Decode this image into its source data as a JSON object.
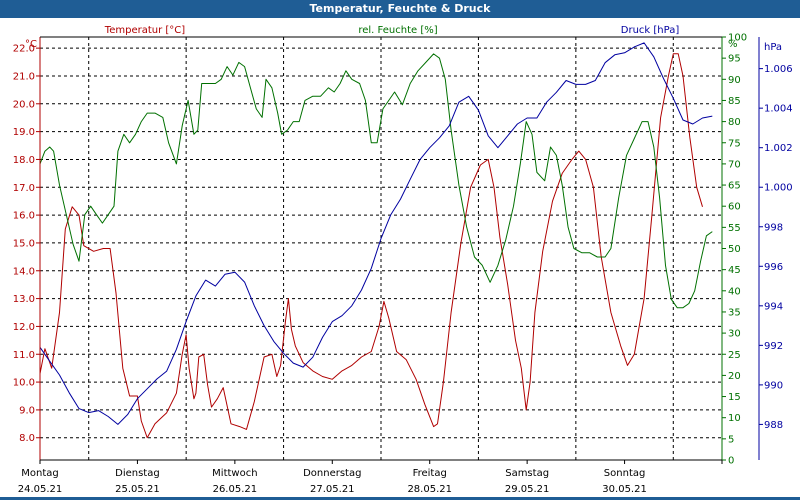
{
  "window": {
    "title": "Temperatur, Feuchte & Druck"
  },
  "colors": {
    "temp": "#b00000",
    "hum": "#007000",
    "press": "#0000a0",
    "titlebar": "#1f5d95"
  },
  "chart_data": {
    "type": "line",
    "title": "Temperatur, Feuchte & Druck",
    "x_labels": [
      {
        "day": "Montag",
        "date": "24.05.21"
      },
      {
        "day": "Dienstag",
        "date": "25.05.21"
      },
      {
        "day": "Mittwoch",
        "date": "26.05.21"
      },
      {
        "day": "Donnerstag",
        "date": "27.05.21"
      },
      {
        "day": "Freitag",
        "date": "28.05.21"
      },
      {
        "day": "Samstag",
        "date": "29.05.21"
      },
      {
        "day": "Sonntag",
        "date": "30.05.21"
      }
    ],
    "x_range_days": [
      0,
      7
    ],
    "axes": {
      "temp": {
        "label": "Temperatur [°C]",
        "unit": "°C",
        "min": 7.2,
        "max": 22.4,
        "ticks": [
          8.0,
          9.0,
          10.0,
          11.0,
          12.0,
          13.0,
          14.0,
          15.0,
          16.0,
          17.0,
          18.0,
          19.0,
          20.0,
          21.0,
          22.0
        ]
      },
      "hum": {
        "label": "rel. Feuchte [%]",
        "unit": "%",
        "min": 0,
        "max": 100,
        "ticks": [
          0,
          5,
          10,
          15,
          20,
          25,
          30,
          35,
          40,
          45,
          50,
          55,
          60,
          65,
          70,
          75,
          80,
          85,
          90,
          95,
          100
        ]
      },
      "press": {
        "label": "Druck [hPa]",
        "unit": "hPa",
        "min": 986.2,
        "max": 1007.6,
        "ticks": [
          988,
          990,
          992,
          994,
          996,
          998,
          1000,
          1002,
          1004,
          1006
        ]
      }
    },
    "series": [
      {
        "name": "Temperatur",
        "axis": "temp",
        "points": [
          [
            0.0,
            10.3
          ],
          [
            0.05,
            11.2
          ],
          [
            0.12,
            10.5
          ],
          [
            0.2,
            12.5
          ],
          [
            0.26,
            15.5
          ],
          [
            0.33,
            16.3
          ],
          [
            0.4,
            16.0
          ],
          [
            0.45,
            14.9
          ],
          [
            0.55,
            14.7
          ],
          [
            0.65,
            14.8
          ],
          [
            0.72,
            14.8
          ],
          [
            0.78,
            13.2
          ],
          [
            0.85,
            10.5
          ],
          [
            0.92,
            9.5
          ],
          [
            1.0,
            9.5
          ],
          [
            1.04,
            8.6
          ],
          [
            1.1,
            8.0
          ],
          [
            1.18,
            8.5
          ],
          [
            1.3,
            8.9
          ],
          [
            1.4,
            9.6
          ],
          [
            1.46,
            11.0
          ],
          [
            1.5,
            11.7
          ],
          [
            1.53,
            10.5
          ],
          [
            1.58,
            9.4
          ],
          [
            1.6,
            9.6
          ],
          [
            1.63,
            10.9
          ],
          [
            1.68,
            11.0
          ],
          [
            1.72,
            9.9
          ],
          [
            1.76,
            9.1
          ],
          [
            1.82,
            9.4
          ],
          [
            1.88,
            9.8
          ],
          [
            1.96,
            8.5
          ],
          [
            2.05,
            8.4
          ],
          [
            2.12,
            8.3
          ],
          [
            2.2,
            9.3
          ],
          [
            2.3,
            10.9
          ],
          [
            2.38,
            11.0
          ],
          [
            2.43,
            10.2
          ],
          [
            2.47,
            10.6
          ],
          [
            2.52,
            12.2
          ],
          [
            2.55,
            13.0
          ],
          [
            2.58,
            11.9
          ],
          [
            2.62,
            11.3
          ],
          [
            2.7,
            10.7
          ],
          [
            2.8,
            10.4
          ],
          [
            2.9,
            10.2
          ],
          [
            3.0,
            10.1
          ],
          [
            3.1,
            10.4
          ],
          [
            3.2,
            10.6
          ],
          [
            3.3,
            10.9
          ],
          [
            3.4,
            11.1
          ],
          [
            3.48,
            12.0
          ],
          [
            3.53,
            12.9
          ],
          [
            3.58,
            12.3
          ],
          [
            3.66,
            11.1
          ],
          [
            3.76,
            10.8
          ],
          [
            3.86,
            10.1
          ],
          [
            3.95,
            9.2
          ],
          [
            4.04,
            8.4
          ],
          [
            4.08,
            8.5
          ],
          [
            4.14,
            10.0
          ],
          [
            4.22,
            12.5
          ],
          [
            4.32,
            15.0
          ],
          [
            4.42,
            17.0
          ],
          [
            4.52,
            17.8
          ],
          [
            4.6,
            18.0
          ],
          [
            4.66,
            17.0
          ],
          [
            4.72,
            15.2
          ],
          [
            4.8,
            13.5
          ],
          [
            4.88,
            11.5
          ],
          [
            4.94,
            10.5
          ],
          [
            4.99,
            9.0
          ],
          [
            5.03,
            10.0
          ],
          [
            5.08,
            12.5
          ],
          [
            5.16,
            14.7
          ],
          [
            5.26,
            16.5
          ],
          [
            5.36,
            17.5
          ],
          [
            5.46,
            18.0
          ],
          [
            5.53,
            18.3
          ],
          [
            5.6,
            18.0
          ],
          [
            5.68,
            17.0
          ],
          [
            5.76,
            14.5
          ],
          [
            5.86,
            12.5
          ],
          [
            5.96,
            11.3
          ],
          [
            6.03,
            10.6
          ],
          [
            6.1,
            11.0
          ],
          [
            6.2,
            13.0
          ],
          [
            6.28,
            16.0
          ],
          [
            6.37,
            19.5
          ],
          [
            6.45,
            21.0
          ],
          [
            6.5,
            21.8
          ],
          [
            6.55,
            21.8
          ],
          [
            6.6,
            21.0
          ],
          [
            6.67,
            18.8
          ],
          [
            6.74,
            17.0
          ],
          [
            6.8,
            16.3
          ]
        ]
      },
      {
        "name": "rel. Feuchte",
        "axis": "hum",
        "points": [
          [
            0.0,
            70.0
          ],
          [
            0.05,
            73.0
          ],
          [
            0.1,
            74.0
          ],
          [
            0.14,
            73.0
          ],
          [
            0.2,
            65.0
          ],
          [
            0.27,
            58.0
          ],
          [
            0.34,
            51.0
          ],
          [
            0.4,
            47.0
          ],
          [
            0.46,
            58.0
          ],
          [
            0.52,
            60.0
          ],
          [
            0.58,
            58.0
          ],
          [
            0.64,
            56.0
          ],
          [
            0.7,
            58.0
          ],
          [
            0.76,
            60.0
          ],
          [
            0.8,
            73.0
          ],
          [
            0.86,
            77.0
          ],
          [
            0.92,
            75.0
          ],
          [
            0.98,
            77.0
          ],
          [
            1.04,
            80.0
          ],
          [
            1.1,
            82.0
          ],
          [
            1.18,
            82.0
          ],
          [
            1.26,
            81.0
          ],
          [
            1.32,
            75.0
          ],
          [
            1.4,
            70.0
          ],
          [
            1.46,
            79.0
          ],
          [
            1.52,
            85.0
          ],
          [
            1.58,
            77.0
          ],
          [
            1.62,
            78.0
          ],
          [
            1.66,
            89.0
          ],
          [
            1.72,
            89.0
          ],
          [
            1.8,
            89.0
          ],
          [
            1.86,
            90.0
          ],
          [
            1.92,
            93.0
          ],
          [
            1.98,
            91.0
          ],
          [
            2.04,
            94.0
          ],
          [
            2.1,
            93.0
          ],
          [
            2.16,
            88.0
          ],
          [
            2.22,
            83.0
          ],
          [
            2.28,
            81.0
          ],
          [
            2.32,
            90.0
          ],
          [
            2.38,
            88.0
          ],
          [
            2.44,
            82.0
          ],
          [
            2.48,
            77.0
          ],
          [
            2.54,
            78.0
          ],
          [
            2.6,
            80.0
          ],
          [
            2.66,
            80.0
          ],
          [
            2.72,
            85.0
          ],
          [
            2.8,
            86.0
          ],
          [
            2.88,
            86.0
          ],
          [
            2.96,
            88.0
          ],
          [
            3.02,
            87.0
          ],
          [
            3.08,
            89.0
          ],
          [
            3.14,
            92.0
          ],
          [
            3.2,
            90.0
          ],
          [
            3.28,
            89.0
          ],
          [
            3.34,
            85.0
          ],
          [
            3.4,
            75.0
          ],
          [
            3.46,
            75.0
          ],
          [
            3.52,
            83.0
          ],
          [
            3.58,
            85.0
          ],
          [
            3.64,
            87.0
          ],
          [
            3.72,
            84.0
          ],
          [
            3.8,
            89.0
          ],
          [
            3.88,
            92.0
          ],
          [
            3.96,
            94.0
          ],
          [
            4.04,
            96.0
          ],
          [
            4.1,
            95.0
          ],
          [
            4.16,
            90.0
          ],
          [
            4.22,
            78.0
          ],
          [
            4.3,
            65.0
          ],
          [
            4.38,
            55.0
          ],
          [
            4.46,
            48.0
          ],
          [
            4.54,
            46.0
          ],
          [
            4.62,
            42.0
          ],
          [
            4.7,
            46.0
          ],
          [
            4.78,
            52.0
          ],
          [
            4.86,
            60.0
          ],
          [
            4.93,
            70.0
          ],
          [
            4.99,
            80.0
          ],
          [
            5.05,
            77.0
          ],
          [
            5.1,
            68.0
          ],
          [
            5.18,
            66.0
          ],
          [
            5.24,
            74.0
          ],
          [
            5.3,
            72.0
          ],
          [
            5.36,
            65.0
          ],
          [
            5.42,
            55.0
          ],
          [
            5.48,
            50.0
          ],
          [
            5.56,
            49.0
          ],
          [
            5.64,
            49.0
          ],
          [
            5.72,
            48.0
          ],
          [
            5.8,
            48.0
          ],
          [
            5.86,
            50.0
          ],
          [
            5.94,
            62.0
          ],
          [
            6.02,
            72.0
          ],
          [
            6.1,
            76.0
          ],
          [
            6.18,
            80.0
          ],
          [
            6.24,
            80.0
          ],
          [
            6.3,
            74.0
          ],
          [
            6.36,
            62.0
          ],
          [
            6.42,
            46.0
          ],
          [
            6.48,
            38.0
          ],
          [
            6.54,
            36.0
          ],
          [
            6.6,
            36.0
          ],
          [
            6.66,
            37.0
          ],
          [
            6.72,
            40.0
          ],
          [
            6.78,
            47.0
          ],
          [
            6.84,
            53.0
          ],
          [
            6.9,
            54.0
          ]
        ]
      },
      {
        "name": "Druck",
        "axis": "press",
        "points": [
          [
            0.0,
            991.9
          ],
          [
            0.1,
            991.2
          ],
          [
            0.2,
            990.5
          ],
          [
            0.3,
            989.6
          ],
          [
            0.4,
            988.8
          ],
          [
            0.5,
            988.6
          ],
          [
            0.6,
            988.7
          ],
          [
            0.7,
            988.4
          ],
          [
            0.8,
            988.0
          ],
          [
            0.9,
            988.5
          ],
          [
            1.0,
            989.3
          ],
          [
            1.1,
            989.8
          ],
          [
            1.2,
            990.3
          ],
          [
            1.3,
            990.7
          ],
          [
            1.4,
            991.8
          ],
          [
            1.5,
            993.2
          ],
          [
            1.6,
            994.5
          ],
          [
            1.7,
            995.3
          ],
          [
            1.8,
            995.0
          ],
          [
            1.9,
            995.6
          ],
          [
            2.0,
            995.7
          ],
          [
            2.1,
            995.2
          ],
          [
            2.2,
            994.0
          ],
          [
            2.3,
            993.0
          ],
          [
            2.4,
            992.2
          ],
          [
            2.5,
            991.6
          ],
          [
            2.6,
            991.1
          ],
          [
            2.7,
            990.9
          ],
          [
            2.8,
            991.4
          ],
          [
            2.9,
            992.4
          ],
          [
            3.0,
            993.2
          ],
          [
            3.1,
            993.5
          ],
          [
            3.2,
            994.0
          ],
          [
            3.3,
            994.8
          ],
          [
            3.4,
            995.9
          ],
          [
            3.5,
            997.4
          ],
          [
            3.6,
            998.6
          ],
          [
            3.7,
            999.4
          ],
          [
            3.8,
            1000.4
          ],
          [
            3.9,
            1001.4
          ],
          [
            4.0,
            1002.0
          ],
          [
            4.1,
            1002.5
          ],
          [
            4.2,
            1003.1
          ],
          [
            4.3,
            1004.3
          ],
          [
            4.4,
            1004.6
          ],
          [
            4.5,
            1003.9
          ],
          [
            4.6,
            1002.6
          ],
          [
            4.7,
            1002.0
          ],
          [
            4.8,
            1002.6
          ],
          [
            4.9,
            1003.2
          ],
          [
            5.0,
            1003.5
          ],
          [
            5.1,
            1003.5
          ],
          [
            5.2,
            1004.3
          ],
          [
            5.3,
            1004.8
          ],
          [
            5.4,
            1005.4
          ],
          [
            5.5,
            1005.2
          ],
          [
            5.6,
            1005.2
          ],
          [
            5.7,
            1005.4
          ],
          [
            5.8,
            1006.3
          ],
          [
            5.9,
            1006.7
          ],
          [
            6.0,
            1006.8
          ],
          [
            6.1,
            1007.1
          ],
          [
            6.2,
            1007.3
          ],
          [
            6.3,
            1006.6
          ],
          [
            6.4,
            1005.5
          ],
          [
            6.5,
            1004.5
          ],
          [
            6.6,
            1003.4
          ],
          [
            6.7,
            1003.2
          ],
          [
            6.8,
            1003.5
          ],
          [
            6.9,
            1003.6
          ]
        ]
      }
    ]
  }
}
